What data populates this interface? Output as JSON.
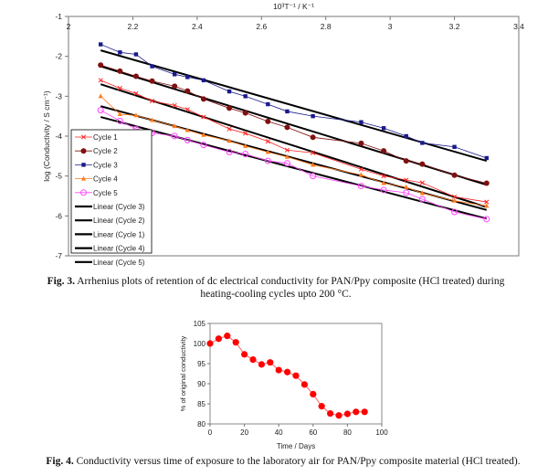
{
  "fig3_caption": {
    "label": "Fig. 3.",
    "text": " Arrhenius plots of retention of dc electrical conductivity for PAN/Ppy composite (HCl treated) during heating-cooling cycles upto 200 °C."
  },
  "fig4_caption": {
    "label": "Fig. 4.",
    "text": " Conductivity versus time of exposure to the laboratory air for PAN/Ppy composite material (HCl treated)."
  },
  "chart_data": [
    {
      "type": "line",
      "title": "",
      "xlabel": "10³T⁻¹ / K⁻¹",
      "ylabel": "log (Conductivity / S cm⁻¹)",
      "xlim": [
        2,
        3.4
      ],
      "ylim": [
        -7,
        -1
      ],
      "xticks": [
        "2",
        "2.2",
        "2.4",
        "2.6",
        "2.8",
        "3",
        "3.2",
        "3.4"
      ],
      "yticks": [
        "-1",
        "-2",
        "-3",
        "-4",
        "-5",
        "-6",
        "-7"
      ],
      "legend_position": "bottom-left",
      "x": [
        2.1,
        2.16,
        2.21,
        2.26,
        2.33,
        2.37,
        2.42,
        2.5,
        2.55,
        2.62,
        2.68,
        2.76,
        2.91,
        2.98,
        3.05,
        3.1,
        3.2,
        3.3
      ],
      "series": [
        {
          "name": "Cycle 1",
          "color": "#ff2020",
          "marker": "cross",
          "values": [
            -2.6,
            -2.8,
            -2.93,
            -3.12,
            -3.23,
            -3.33,
            -3.52,
            -3.82,
            -3.93,
            -4.13,
            -4.35,
            -4.42,
            -4.83,
            -5.0,
            -5.1,
            -5.17,
            -5.52,
            -5.65
          ]
        },
        {
          "name": "Cycle 2",
          "color": "#801010",
          "marker": "circle",
          "values": [
            -2.22,
            -2.37,
            -2.5,
            -2.62,
            -2.75,
            -2.87,
            -3.07,
            -3.3,
            -3.42,
            -3.63,
            -3.78,
            -4.03,
            -4.18,
            -4.37,
            -4.62,
            -4.7,
            -4.98,
            -5.18
          ]
        },
        {
          "name": "Cycle 3",
          "color": "#1a1a8c",
          "marker": "square",
          "values": [
            -1.7,
            -1.9,
            -1.95,
            -2.25,
            -2.45,
            -2.52,
            -2.6,
            -2.88,
            -3.0,
            -3.2,
            -3.38,
            -3.5,
            -3.65,
            -3.8,
            -4.0,
            -4.17,
            -4.27,
            -4.55
          ]
        },
        {
          "name": "Cycle 4",
          "color": "#ff7a1a",
          "marker": "triangle",
          "values": [
            -3.0,
            -3.45,
            -3.48,
            -3.6,
            -3.75,
            -3.85,
            -3.97,
            -4.12,
            -4.25,
            -4.4,
            -4.52,
            -4.72,
            -4.97,
            -5.18,
            -5.28,
            -5.43,
            -5.62,
            -5.75
          ]
        },
        {
          "name": "Cycle 5",
          "color": "#ff44ff",
          "marker": "open-circle",
          "values": [
            -3.35,
            -3.62,
            -3.82,
            -3.92,
            -4.0,
            -4.1,
            -4.22,
            -4.4,
            -4.45,
            -4.62,
            -4.68,
            -5.0,
            -5.25,
            -5.35,
            -5.42,
            -5.58,
            -5.9,
            -6.08
          ]
        }
      ],
      "trendlines": [
        {
          "name": "Linear (Cycle 3)",
          "x": [
            2.1,
            3.3
          ],
          "y": [
            -1.85,
            -4.62
          ]
        },
        {
          "name": "Linear (Cycle 2)",
          "x": [
            2.1,
            3.3
          ],
          "y": [
            -2.25,
            -5.22
          ]
        },
        {
          "name": "Linear (Cycle 1)",
          "x": [
            2.1,
            3.3
          ],
          "y": [
            -2.7,
            -5.78
          ]
        },
        {
          "name": "Linear (Cycle 4)",
          "x": [
            2.1,
            3.3
          ],
          "y": [
            -3.25,
            -5.85
          ]
        },
        {
          "name": "Linear (Cycle 5)",
          "x": [
            2.1,
            3.3
          ],
          "y": [
            -3.52,
            -6.07
          ]
        }
      ]
    },
    {
      "type": "line",
      "title": "",
      "xlabel": "Time / Days",
      "ylabel": "% of original conductivity",
      "xlim": [
        0,
        100
      ],
      "ylim": [
        80,
        105
      ],
      "xticks": [
        "0",
        "20",
        "40",
        "60",
        "80",
        "100"
      ],
      "yticks": [
        "80",
        "85",
        "90",
        "95",
        "100",
        "105"
      ],
      "color": "#ff0000",
      "x": [
        0,
        5,
        10,
        15,
        20,
        25,
        30,
        35,
        40,
        45,
        50,
        55,
        60,
        65,
        70,
        75,
        80,
        85,
        90
      ],
      "values": [
        100,
        101.2,
        101.9,
        100.3,
        97.3,
        96,
        94.8,
        95.3,
        93.4,
        92.9,
        92,
        89.8,
        87.4,
        84.4,
        82.6,
        82.1,
        82.5,
        83,
        83
      ]
    }
  ]
}
